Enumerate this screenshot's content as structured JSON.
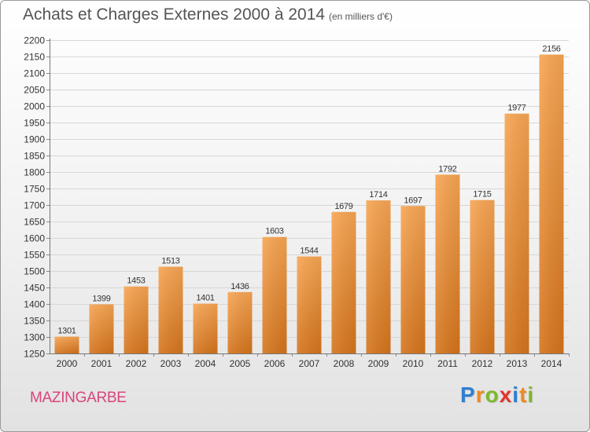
{
  "header": {
    "title": "Achats et Charges Externes 2000 à 2014",
    "unit": "(en milliers d'€)"
  },
  "footer": {
    "commune": "MAZINGARBE",
    "logo_text": "Proxiti",
    "logo_letters": [
      {
        "ch": "P",
        "color": "#2f7fd0"
      },
      {
        "ch": "r",
        "color": "#f08a1c"
      },
      {
        "ch": "o",
        "color": "#7cb928"
      },
      {
        "ch": "x",
        "color": "#e0342f"
      },
      {
        "ch": "i",
        "color": "#2f7fd0"
      },
      {
        "ch": "t",
        "color": "#f08a1c"
      },
      {
        "ch": "i",
        "color": "#7cb928"
      }
    ]
  },
  "colors": {
    "bar_light": "#f7a553",
    "bar_dark": "#d4741c",
    "grid": "#d7d7d7",
    "text": "#333333"
  },
  "chart_data": {
    "type": "bar",
    "title": "Achats et Charges Externes 2000 à 2014",
    "categories": [
      "2000",
      "2001",
      "2002",
      "2003",
      "2004",
      "2005",
      "2006",
      "2007",
      "2008",
      "2009",
      "2010",
      "2011",
      "2012",
      "2013",
      "2014"
    ],
    "values": [
      1301,
      1399,
      1453,
      1513,
      1401,
      1436,
      1603,
      1544,
      1679,
      1714,
      1697,
      1792,
      1715,
      1977,
      2156
    ],
    "ylim": [
      1250,
      2200
    ],
    "ytick_step": 50,
    "grid": true,
    "data_labels": true
  }
}
